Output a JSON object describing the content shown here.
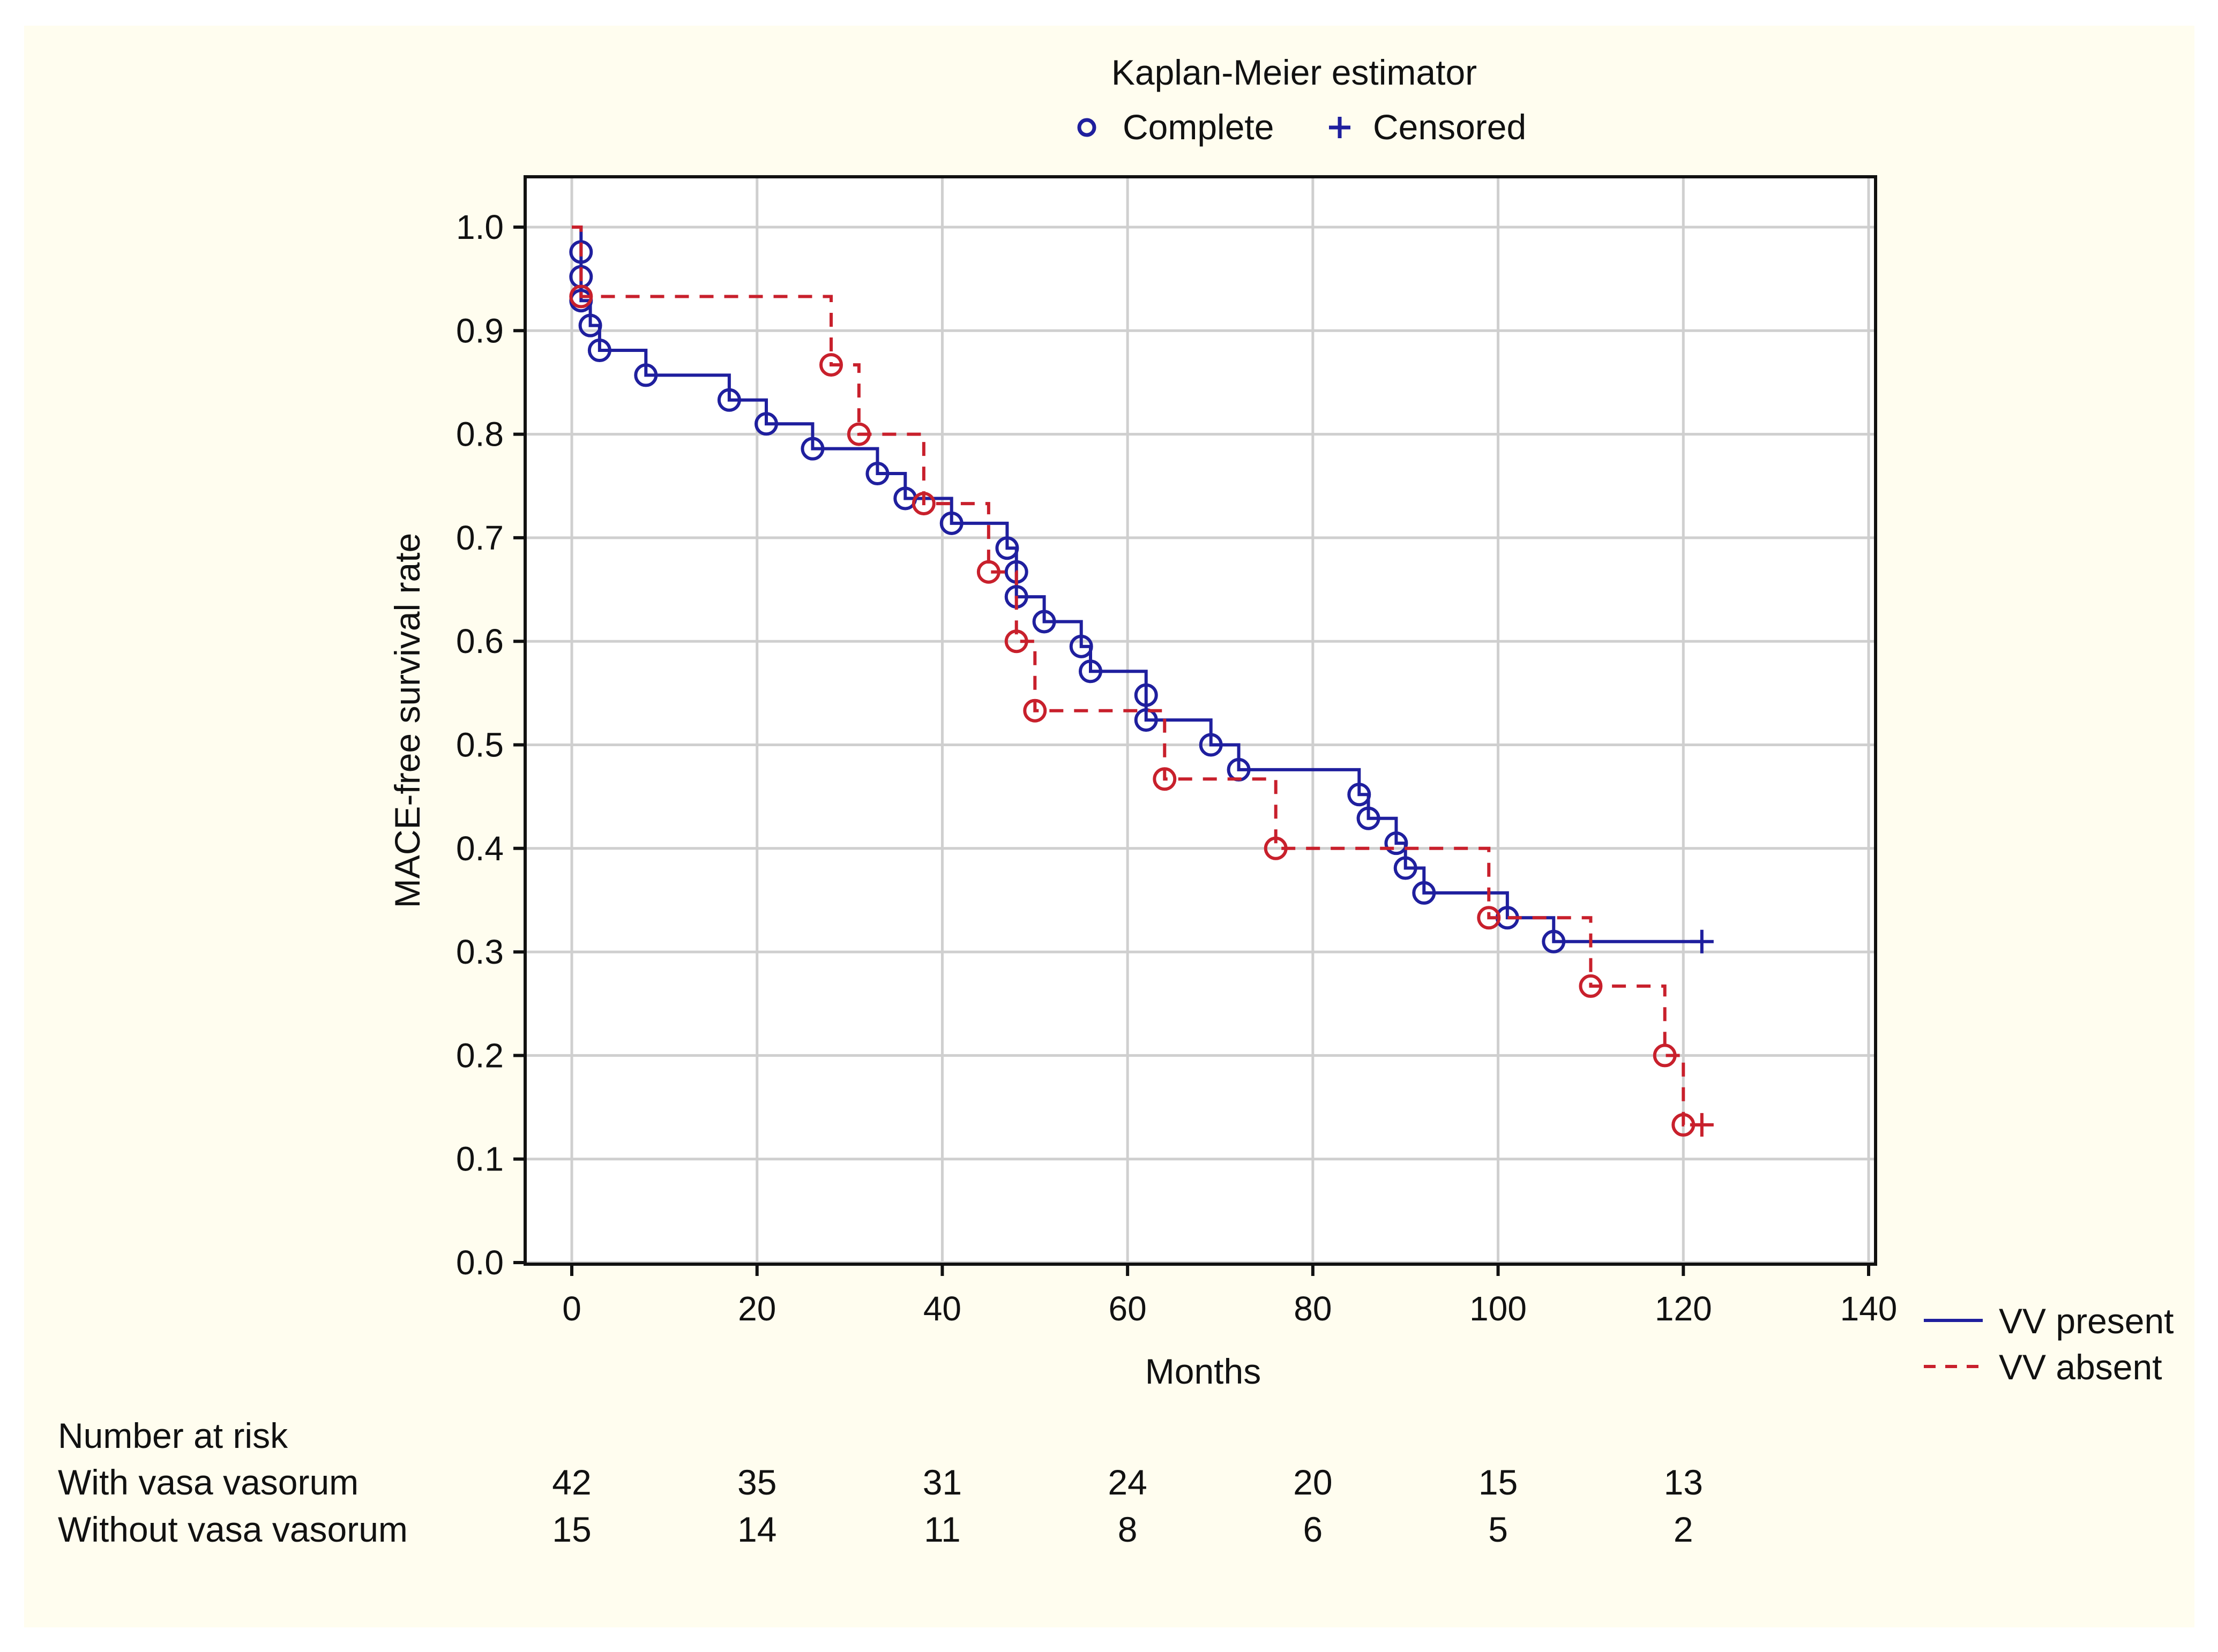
{
  "chart_data": {
    "type": "line",
    "title": "Kaplan-Meier estimator",
    "marker_legend": {
      "complete": "Complete",
      "censored": "Censored"
    },
    "xlabel": "Months",
    "ylabel": "MACE-free survival rate",
    "xlim": [
      0,
      140
    ],
    "ylim": [
      0,
      1.0
    ],
    "x_ticks": [
      0,
      20,
      40,
      60,
      80,
      100,
      120,
      140
    ],
    "y_ticks": [
      "0.0",
      "0.1",
      "0.2",
      "0.3",
      "0.4",
      "0.5",
      "0.6",
      "0.7",
      "0.8",
      "0.9",
      "1.0"
    ],
    "grid": true,
    "legend_position": "bottom-right, outside plot",
    "series": [
      {
        "name": "VV present",
        "color": "#1f1f9e",
        "line_style": "solid",
        "steps": [
          [
            0,
            1.0
          ],
          [
            1,
            0.976
          ],
          [
            1,
            0.952
          ],
          [
            1,
            0.929
          ],
          [
            2,
            0.905
          ],
          [
            3,
            0.881
          ],
          [
            8,
            0.857
          ],
          [
            17,
            0.833
          ],
          [
            21,
            0.81
          ],
          [
            26,
            0.786
          ],
          [
            33,
            0.762
          ],
          [
            36,
            0.738
          ],
          [
            41,
            0.714
          ],
          [
            47,
            0.69
          ],
          [
            48,
            0.667
          ],
          [
            48,
            0.643
          ],
          [
            51,
            0.619
          ],
          [
            55,
            0.595
          ],
          [
            56,
            0.571
          ],
          [
            62,
            0.548
          ],
          [
            62,
            0.524
          ],
          [
            69,
            0.5
          ],
          [
            72,
            0.476
          ],
          [
            85,
            0.452
          ],
          [
            86,
            0.429
          ],
          [
            89,
            0.405
          ],
          [
            90,
            0.381
          ],
          [
            92,
            0.357
          ],
          [
            101,
            0.333
          ],
          [
            106,
            0.31
          ]
        ],
        "censored": [
          [
            122,
            0.31
          ]
        ]
      },
      {
        "name": "VV absent",
        "color": "#c8202c",
        "line_style": "dashed",
        "steps": [
          [
            0,
            1.0
          ],
          [
            1,
            0.933
          ],
          [
            28,
            0.867
          ],
          [
            31,
            0.8
          ],
          [
            38,
            0.733
          ],
          [
            45,
            0.667
          ],
          [
            48,
            0.6
          ],
          [
            50,
            0.533
          ],
          [
            64,
            0.467
          ],
          [
            76,
            0.4
          ],
          [
            99,
            0.333
          ],
          [
            110,
            0.267
          ],
          [
            118,
            0.2
          ],
          [
            120,
            0.133
          ]
        ],
        "censored": [
          [
            122,
            0.133
          ]
        ]
      }
    ],
    "risk_table": {
      "title": "Number at risk",
      "times": [
        0,
        20,
        40,
        60,
        80,
        100,
        120
      ],
      "rows": [
        {
          "label": "With vasa vasorum",
          "values": [
            "42",
            "35",
            "31",
            "24",
            "20",
            "15",
            "13"
          ]
        },
        {
          "label": "Without vasa vasorum",
          "values": [
            "15",
            "14",
            "11",
            "8",
            "6",
            "5",
            "2"
          ]
        }
      ]
    }
  }
}
